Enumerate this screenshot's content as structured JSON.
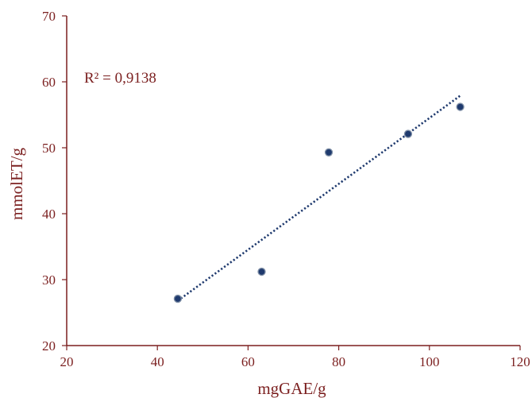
{
  "chart_data": {
    "type": "scatter",
    "title": "",
    "xlabel": "mgGAE/g",
    "ylabel": "mmolET/g",
    "xlim": [
      20,
      120
    ],
    "ylim": [
      20,
      70
    ],
    "x_ticks": [
      20,
      40,
      60,
      80,
      100,
      120
    ],
    "y_ticks": [
      20,
      30,
      40,
      50,
      60,
      70
    ],
    "grid": false,
    "legend": "none",
    "series": [
      {
        "points": [
          {
            "x": 44.5,
            "y": 27.1
          },
          {
            "x": 63.0,
            "y": 31.2
          },
          {
            "x": 77.8,
            "y": 49.3
          },
          {
            "x": 95.3,
            "y": 52.1
          },
          {
            "x": 106.8,
            "y": 56.2
          }
        ],
        "marker_color": "#1f3a6e",
        "marker_edge_color": "#7f8fa6"
      }
    ],
    "trendline": {
      "type": "linear",
      "style": "dotted",
      "color": "#1f3a6e",
      "x_range": [
        44.5,
        106.8
      ],
      "y_at_start": 26.8,
      "y_at_end": 57.9
    },
    "annotations": [
      {
        "text": "R² = 0,9138"
      }
    ],
    "axis_color": "#7b1f1f"
  }
}
